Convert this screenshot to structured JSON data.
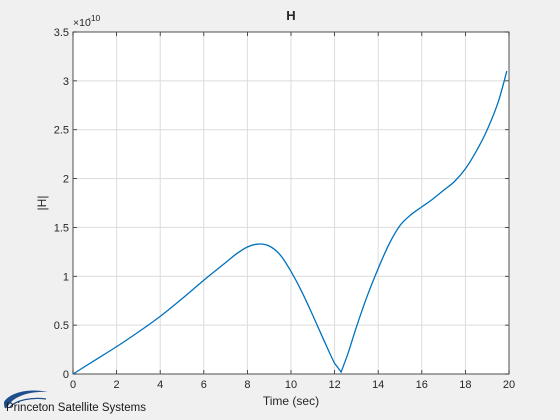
{
  "chart_data": {
    "type": "line",
    "title": "H",
    "xlabel": "Time (sec)",
    "ylabel": "|H|",
    "xlim": [
      0,
      20
    ],
    "ylim": [
      0,
      3.5
    ],
    "y_exponent_label": "×10",
    "y_exponent_power": "-10",
    "y_scale": 1e-10,
    "grid": true,
    "xticks": [
      0,
      2,
      4,
      6,
      8,
      10,
      12,
      14,
      16,
      18,
      20
    ],
    "yticks": [
      0,
      0.5,
      1,
      1.5,
      2,
      2.5,
      3,
      3.5
    ],
    "xtick_labels": [
      "0",
      "2",
      "4",
      "6",
      "8",
      "10",
      "12",
      "14",
      "16",
      "18",
      "20"
    ],
    "ytick_labels": [
      "0",
      "0.5",
      "1",
      "1.5",
      "2",
      "2.5",
      "3",
      "3.5"
    ],
    "series": [
      {
        "color": "#0072bd",
        "x": [
          0,
          1,
          2,
          3,
          4,
          5,
          6,
          7,
          7.5,
          8,
          8.5,
          9,
          9.5,
          10,
          10.5,
          11,
          11.5,
          12,
          12.3,
          12.6,
          13,
          13.5,
          14,
          14.5,
          15,
          15.5,
          16,
          16.5,
          17,
          17.5,
          18,
          18.5,
          19,
          19.5,
          19.9
        ],
        "y": [
          0,
          0.14,
          0.28,
          0.43,
          0.59,
          0.77,
          0.96,
          1.14,
          1.23,
          1.3,
          1.33,
          1.31,
          1.22,
          1.05,
          0.84,
          0.6,
          0.35,
          0.11,
          0.02,
          0.2,
          0.48,
          0.8,
          1.08,
          1.33,
          1.52,
          1.63,
          1.71,
          1.79,
          1.88,
          1.97,
          2.1,
          2.28,
          2.5,
          2.78,
          3.1
        ]
      }
    ]
  },
  "footer": {
    "logo_text": "Princeton Satellite Systems",
    "logo_color": "#1e4e8c"
  }
}
